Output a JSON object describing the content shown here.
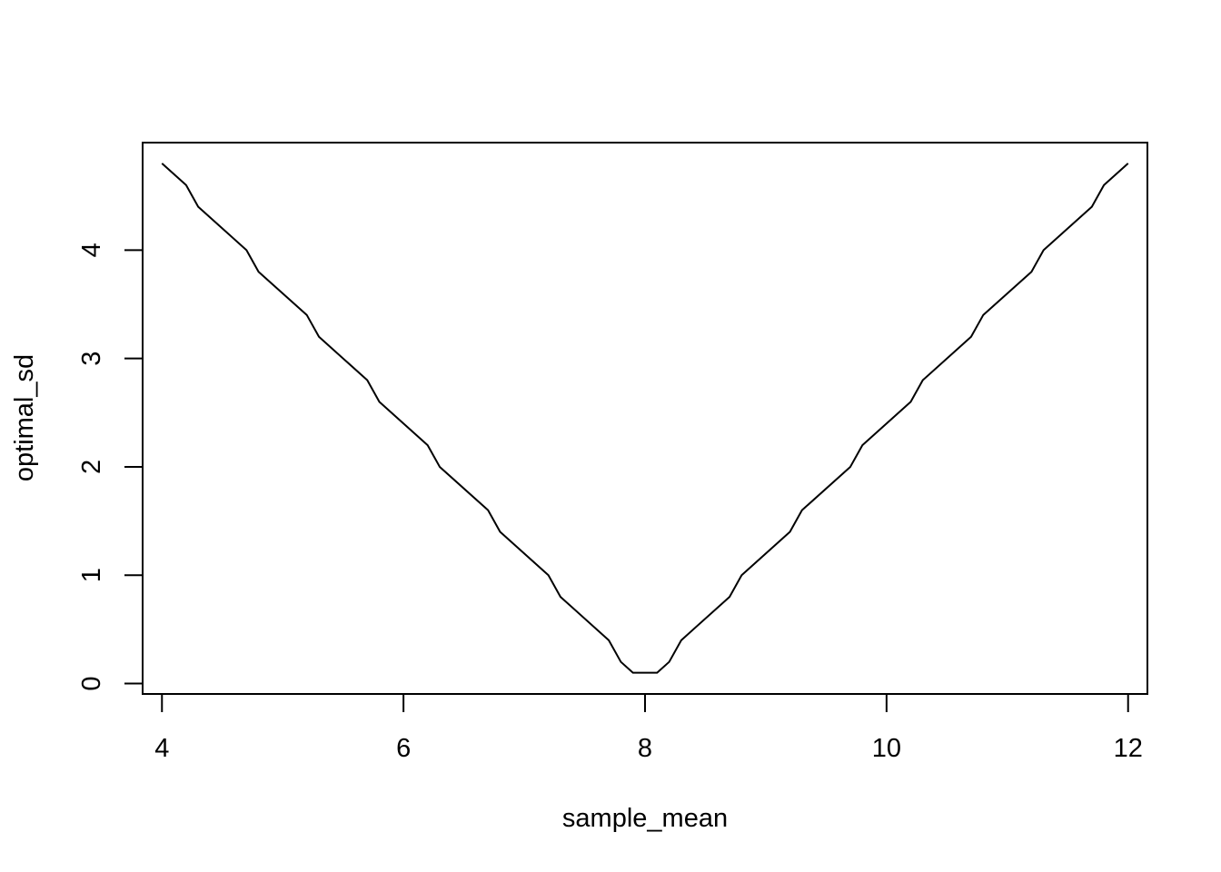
{
  "chart_data": {
    "type": "line",
    "title": "",
    "xlabel": "sample_mean",
    "ylabel": "optimal_sd",
    "xlim": [
      3.84,
      12.16
    ],
    "ylim": [
      -0.096,
      4.992
    ],
    "x_ticks": [
      "4",
      "6",
      "8",
      "10",
      "12"
    ],
    "y_ticks": [
      "0",
      "1",
      "2",
      "3",
      "4"
    ],
    "grid": false,
    "series": [
      {
        "color": "#000000",
        "points": [
          [
            4.0,
            4.8
          ],
          [
            4.2,
            4.6
          ],
          [
            4.3,
            4.4
          ],
          [
            4.7,
            4.0
          ],
          [
            4.8,
            3.8
          ],
          [
            5.2,
            3.4
          ],
          [
            5.3,
            3.2
          ],
          [
            5.7,
            2.8
          ],
          [
            5.8,
            2.6
          ],
          [
            6.2,
            2.2
          ],
          [
            6.3,
            2.0
          ],
          [
            6.7,
            1.6
          ],
          [
            6.8,
            1.4
          ],
          [
            7.2,
            1.0
          ],
          [
            7.3,
            0.8
          ],
          [
            7.7,
            0.4
          ],
          [
            7.8,
            0.2
          ],
          [
            7.9,
            0.1
          ],
          [
            8.1,
            0.1
          ],
          [
            8.2,
            0.2
          ],
          [
            8.3,
            0.4
          ],
          [
            8.7,
            0.8
          ],
          [
            8.8,
            1.0
          ],
          [
            9.2,
            1.4
          ],
          [
            9.3,
            1.6
          ],
          [
            9.7,
            2.0
          ],
          [
            9.8,
            2.2
          ],
          [
            10.2,
            2.6
          ],
          [
            10.3,
            2.8
          ],
          [
            10.7,
            3.2
          ],
          [
            10.8,
            3.4
          ],
          [
            11.2,
            3.8
          ],
          [
            11.3,
            4.0
          ],
          [
            11.7,
            4.4
          ],
          [
            11.8,
            4.6
          ],
          [
            12.0,
            4.8
          ]
        ]
      }
    ]
  }
}
